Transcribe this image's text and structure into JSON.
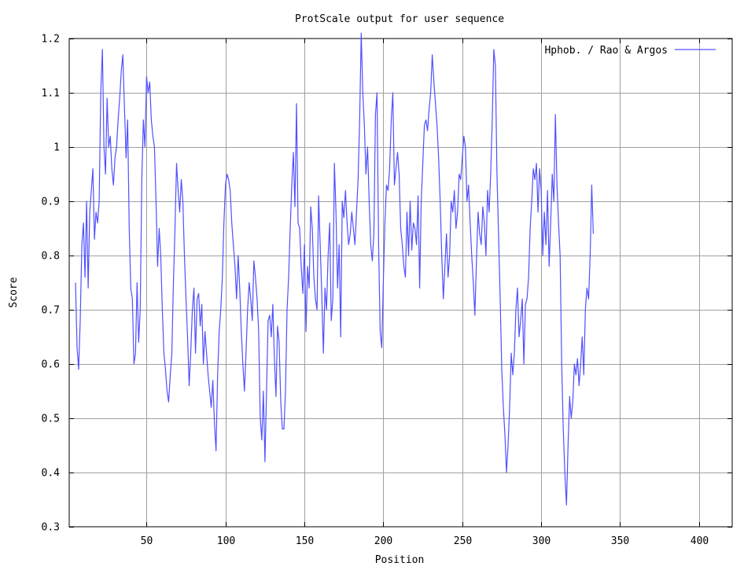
{
  "chart_data": {
    "type": "line",
    "title": "ProtScale output for user sequence",
    "xlabel": "Position",
    "ylabel": "Score",
    "xlim": [
      1,
      421
    ],
    "ylim": [
      0.3,
      1.2
    ],
    "x_ticks": [
      50,
      100,
      150,
      200,
      250,
      300,
      350,
      400
    ],
    "y_ticks": [
      0.3,
      0.4,
      0.5,
      0.6,
      0.7,
      0.8,
      0.9,
      1.0,
      1.1,
      1.2
    ],
    "x_tick_labels": [
      "50",
      "100",
      "150",
      "200",
      "250",
      "300",
      "350",
      "400"
    ],
    "y_tick_labels": [
      "0.3",
      "0.4",
      "0.5",
      "0.6",
      "0.7",
      "0.8",
      "0.9",
      "1",
      "1.1",
      "1.2"
    ],
    "grid": true,
    "legend_position": "top-right",
    "colors": {
      "series": "#5050ff",
      "grid": "#a0a0a0",
      "axis": "#000000"
    },
    "series": [
      {
        "name": "Hphob. / Rao & Argos",
        "x_start": 5,
        "x_step": 1,
        "values": [
          0.75,
          0.63,
          0.59,
          0.68,
          0.82,
          0.86,
          0.76,
          0.9,
          0.74,
          0.88,
          0.92,
          0.96,
          0.83,
          0.88,
          0.86,
          0.9,
          1.1,
          1.18,
          1.0,
          0.95,
          1.09,
          1.0,
          1.02,
          0.96,
          0.93,
          0.98,
          1.0,
          1.05,
          1.09,
          1.14,
          1.17,
          1.07,
          0.98,
          1.05,
          0.85,
          0.74,
          0.72,
          0.6,
          0.62,
          0.75,
          0.64,
          0.7,
          0.94,
          1.05,
          1.0,
          1.13,
          1.1,
          1.12,
          1.05,
          1.02,
          1.0,
          0.9,
          0.78,
          0.85,
          0.8,
          0.7,
          0.62,
          0.59,
          0.55,
          0.53,
          0.58,
          0.62,
          0.75,
          0.85,
          0.97,
          0.92,
          0.88,
          0.94,
          0.9,
          0.8,
          0.72,
          0.65,
          0.56,
          0.62,
          0.7,
          0.74,
          0.62,
          0.72,
          0.73,
          0.67,
          0.71,
          0.6,
          0.66,
          0.62,
          0.58,
          0.55,
          0.52,
          0.57,
          0.49,
          0.44,
          0.58,
          0.66,
          0.7,
          0.76,
          0.86,
          0.93,
          0.95,
          0.94,
          0.92,
          0.86,
          0.82,
          0.78,
          0.72,
          0.8,
          0.74,
          0.66,
          0.6,
          0.55,
          0.62,
          0.7,
          0.75,
          0.72,
          0.68,
          0.79,
          0.76,
          0.72,
          0.66,
          0.5,
          0.46,
          0.55,
          0.42,
          0.55,
          0.68,
          0.69,
          0.65,
          0.71,
          0.61,
          0.54,
          0.67,
          0.64,
          0.53,
          0.48,
          0.48,
          0.55,
          0.7,
          0.76,
          0.85,
          0.93,
          0.99,
          0.89,
          1.08,
          0.86,
          0.85,
          0.78,
          0.73,
          0.82,
          0.66,
          0.78,
          0.74,
          0.89,
          0.85,
          0.76,
          0.72,
          0.7,
          0.91,
          0.82,
          0.73,
          0.62,
          0.74,
          0.7,
          0.8,
          0.86,
          0.68,
          0.72,
          0.97,
          0.88,
          0.74,
          0.82,
          0.65,
          0.9,
          0.87,
          0.92,
          0.86,
          0.82,
          0.84,
          0.88,
          0.85,
          0.82,
          0.88,
          0.94,
          1.05,
          1.21,
          1.1,
          1.04,
          0.95,
          1.0,
          0.9,
          0.82,
          0.79,
          0.84,
          1.06,
          1.1,
          0.82,
          0.66,
          0.63,
          0.75,
          0.86,
          0.93,
          0.92,
          0.96,
          1.05,
          1.1,
          0.93,
          0.96,
          0.99,
          0.95,
          0.85,
          0.82,
          0.78,
          0.76,
          0.88,
          0.8,
          0.9,
          0.81,
          0.86,
          0.85,
          0.82,
          0.91,
          0.74,
          0.9,
          0.97,
          1.04,
          1.05,
          1.03,
          1.07,
          1.1,
          1.17,
          1.12,
          1.08,
          1.04,
          0.98,
          0.9,
          0.8,
          0.72,
          0.78,
          0.84,
          0.76,
          0.8,
          0.9,
          0.88,
          0.92,
          0.85,
          0.88,
          0.95,
          0.94,
          0.98,
          1.02,
          1.0,
          0.9,
          0.93,
          0.86,
          0.8,
          0.75,
          0.69,
          0.79,
          0.88,
          0.84,
          0.82,
          0.89,
          0.86,
          0.8,
          0.92,
          0.88,
          0.95,
          1.05,
          1.18,
          1.15,
          0.95,
          0.84,
          0.72,
          0.59,
          0.52,
          0.47,
          0.4,
          0.45,
          0.52,
          0.62,
          0.58,
          0.62,
          0.7,
          0.74,
          0.65,
          0.68,
          0.72,
          0.6,
          0.71,
          0.72,
          0.76,
          0.85,
          0.9,
          0.96,
          0.94,
          0.97,
          0.88,
          0.96,
          0.92,
          0.8,
          0.88,
          0.82,
          0.92,
          0.78,
          0.86,
          0.95,
          0.9,
          1.06,
          0.93,
          0.86,
          0.8,
          0.6,
          0.48,
          0.4,
          0.34,
          0.45,
          0.54,
          0.5,
          0.53,
          0.6,
          0.58,
          0.61,
          0.56,
          0.6,
          0.65,
          0.58,
          0.7,
          0.74,
          0.72,
          0.8,
          0.93,
          0.84
        ]
      }
    ]
  }
}
